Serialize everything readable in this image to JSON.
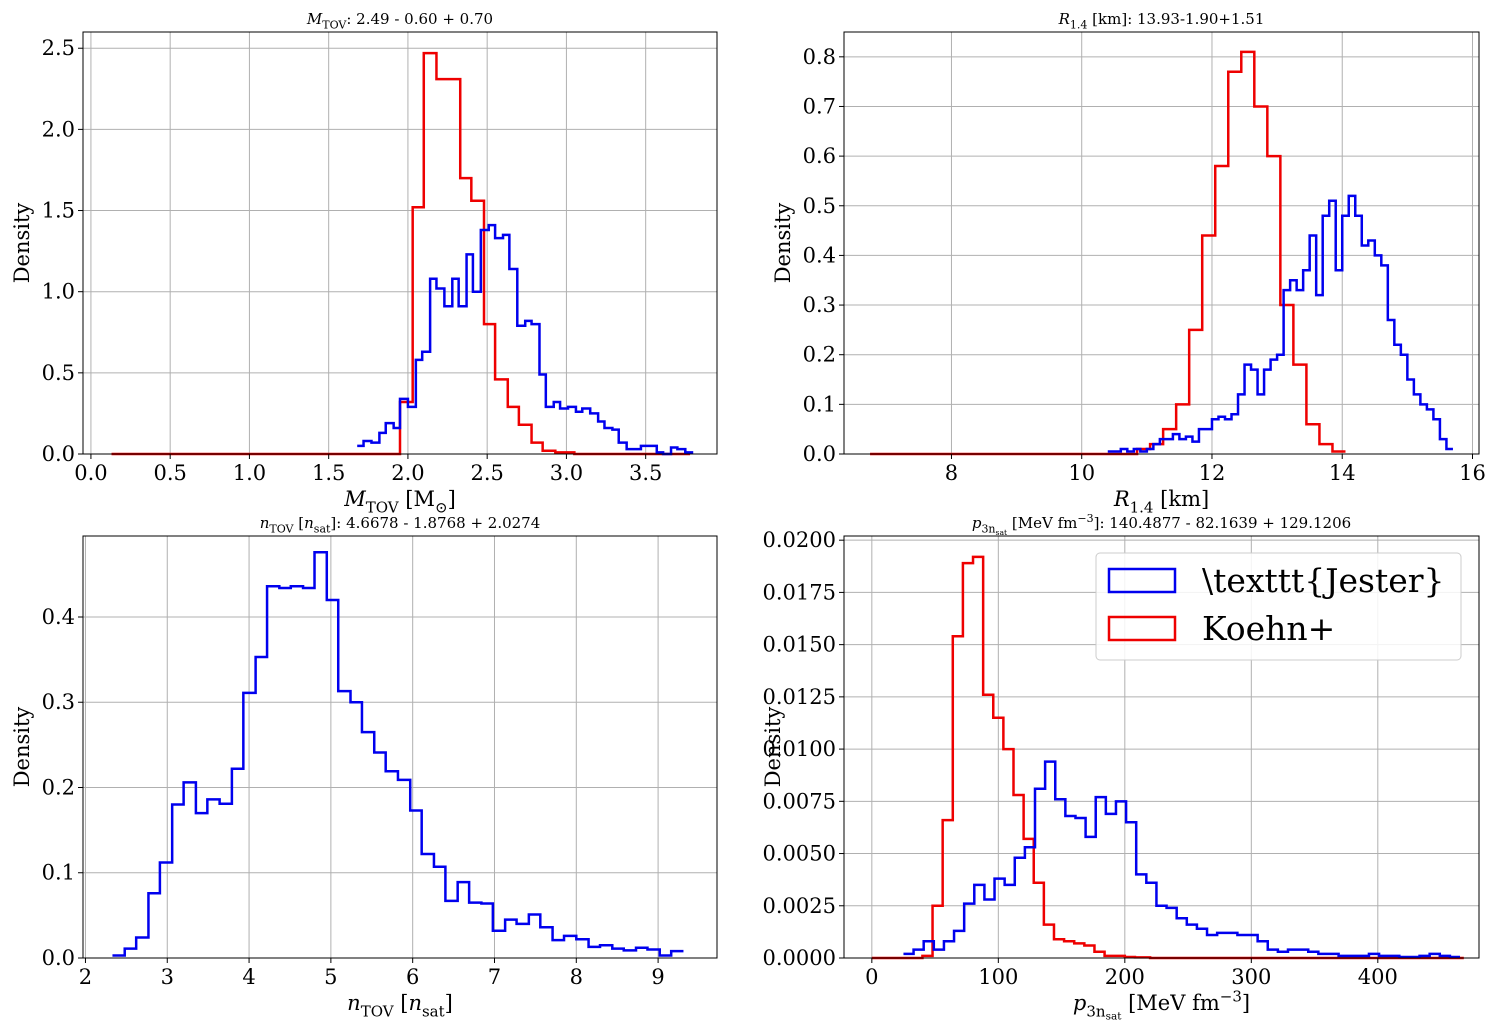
{
  "colors": {
    "jester": "#0000ee",
    "koehn": "#ee0000",
    "grid": "#b0b0b0",
    "axis": "#000000"
  },
  "legend": {
    "jester_label": "\\texttt{Jester}",
    "koehn_label": "Koehn+"
  },
  "chart_data": [
    {
      "type": "histogram",
      "title": {
        "main": "M",
        "sub": "TOV",
        "rest": ": 2.49 - 0.60 + 0.70"
      },
      "xlabel": {
        "main": "M",
        "sub": "TOV",
        "rest": " [M",
        "rest_sub": "⊙",
        "tail": "]"
      },
      "ylabel": "Density",
      "xlim": [
        -0.05,
        3.95
      ],
      "ylim": [
        0,
        2.6
      ],
      "xticks": [
        0.0,
        0.5,
        1.0,
        1.5,
        2.0,
        2.5,
        3.0,
        3.5
      ],
      "xtick_labels": [
        "0.0",
        "0.5",
        "1.0",
        "1.5",
        "2.0",
        "2.5",
        "3.0",
        "3.5"
      ],
      "yticks": [
        0.0,
        0.5,
        1.0,
        1.5,
        2.0,
        2.5
      ],
      "ytick_labels": [
        "0.0",
        "0.5",
        "1.0",
        "1.5",
        "2.0",
        "2.5"
      ],
      "grid": true,
      "series": [
        {
          "key": "koehn",
          "edges": [
            0.13,
            1.95,
            2.03,
            2.1,
            2.18,
            2.25,
            2.33,
            2.4,
            2.48,
            2.55,
            2.63,
            2.7,
            2.78,
            2.85,
            2.93,
            3.05,
            3.78
          ],
          "values": [
            0,
            0.32,
            1.52,
            2.47,
            2.31,
            2.31,
            1.7,
            1.56,
            0.8,
            0.46,
            0.29,
            0.18,
            0.07,
            0.02,
            0.01,
            0
          ]
        },
        {
          "key": "jester",
          "edges": [
            1.68,
            1.72,
            1.77,
            1.82,
            1.86,
            1.91,
            1.95,
            2.0,
            2.05,
            2.09,
            2.14,
            2.18,
            2.23,
            2.28,
            2.32,
            2.37,
            2.41,
            2.46,
            2.51,
            2.55,
            2.6,
            2.64,
            2.69,
            2.74,
            2.78,
            2.83,
            2.87,
            2.92,
            2.96,
            3.01,
            3.06,
            3.1,
            3.15,
            3.2,
            3.24,
            3.29,
            3.33,
            3.38,
            3.43,
            3.47,
            3.52,
            3.57,
            3.61,
            3.66,
            3.7,
            3.75,
            3.8
          ],
          "values": [
            0.05,
            0.08,
            0.07,
            0.13,
            0.19,
            0.16,
            0.34,
            0.29,
            0.58,
            0.63,
            1.08,
            1.02,
            0.91,
            1.08,
            0.91,
            1.23,
            1.0,
            1.38,
            1.41,
            1.33,
            1.35,
            1.14,
            0.79,
            0.82,
            0.8,
            0.49,
            0.29,
            0.32,
            0.28,
            0.29,
            0.26,
            0.28,
            0.25,
            0.2,
            0.16,
            0.15,
            0.07,
            0.03,
            0.03,
            0.05,
            0.05,
            0.01,
            0.0,
            0.04,
            0.03,
            0.01
          ]
        }
      ]
    },
    {
      "type": "histogram",
      "title": {
        "main": "R",
        "sub": "1.4",
        "rest": " [km]: 13.93-1.90+1.51"
      },
      "xlabel": {
        "main": "R",
        "sub": "1.4",
        "rest": " [km]"
      },
      "ylabel": "Density",
      "xlim": [
        6.35,
        16.1
      ],
      "ylim": [
        0,
        0.85
      ],
      "xticks": [
        8,
        10,
        12,
        14,
        16
      ],
      "xtick_labels": [
        "8",
        "10",
        "12",
        "14",
        "16"
      ],
      "yticks": [
        0.0,
        0.1,
        0.2,
        0.3,
        0.4,
        0.5,
        0.6,
        0.7,
        0.8
      ],
      "ytick_labels": [
        "0.0",
        "0.1",
        "0.2",
        "0.3",
        "0.4",
        "0.5",
        "0.6",
        "0.7",
        "0.8"
      ],
      "grid": true,
      "series": [
        {
          "key": "koehn",
          "edges": [
            6.75,
            10.85,
            11.05,
            11.25,
            11.45,
            11.65,
            11.85,
            12.05,
            12.25,
            12.45,
            12.65,
            12.85,
            13.05,
            13.25,
            13.45,
            13.65,
            13.85,
            14.05
          ],
          "values": [
            0,
            0.01,
            0.02,
            0.05,
            0.1,
            0.25,
            0.44,
            0.58,
            0.77,
            0.81,
            0.7,
            0.6,
            0.3,
            0.18,
            0.06,
            0.02,
            0.005
          ]
        },
        {
          "key": "jester",
          "edges": [
            10.4,
            10.5,
            10.6,
            10.7,
            10.8,
            10.9,
            11.0,
            11.1,
            11.2,
            11.3,
            11.4,
            11.5,
            11.6,
            11.7,
            11.8,
            11.9,
            12.0,
            12.1,
            12.2,
            12.3,
            12.4,
            12.5,
            12.6,
            12.7,
            12.8,
            12.9,
            13.0,
            13.1,
            13.2,
            13.3,
            13.4,
            13.5,
            13.6,
            13.7,
            13.8,
            13.9,
            14.0,
            14.1,
            14.2,
            14.3,
            14.4,
            14.5,
            14.6,
            14.7,
            14.8,
            14.9,
            15.0,
            15.1,
            15.2,
            15.3,
            15.4,
            15.5,
            15.6,
            15.7
          ],
          "values": [
            0.005,
            0.005,
            0.01,
            0.005,
            0.01,
            0.005,
            0.01,
            0.02,
            0.03,
            0.03,
            0.04,
            0.03,
            0.035,
            0.025,
            0.05,
            0.05,
            0.07,
            0.075,
            0.07,
            0.08,
            0.12,
            0.18,
            0.17,
            0.12,
            0.17,
            0.19,
            0.2,
            0.33,
            0.35,
            0.33,
            0.37,
            0.44,
            0.32,
            0.48,
            0.51,
            0.37,
            0.48,
            0.52,
            0.48,
            0.42,
            0.43,
            0.4,
            0.38,
            0.27,
            0.22,
            0.2,
            0.15,
            0.12,
            0.1,
            0.09,
            0.07,
            0.03,
            0.01
          ]
        }
      ]
    },
    {
      "type": "histogram",
      "title": {
        "main": "n",
        "sub": "TOV",
        "rest": " [",
        "rest_main": "n",
        "rest_sub": "sat",
        "tail": "]: 4.6678 - 1.8768 + 2.0274"
      },
      "xlabel": {
        "main": "n",
        "sub": "TOV",
        "rest": " [",
        "rest_main": "n",
        "rest_sub": "sat",
        "tail": "]"
      },
      "ylabel": "Density",
      "xlim": [
        1.97,
        9.72
      ],
      "ylim": [
        0,
        0.495
      ],
      "xticks": [
        2,
        3,
        4,
        5,
        6,
        7,
        8,
        9
      ],
      "xtick_labels": [
        "2",
        "3",
        "4",
        "5",
        "6",
        "7",
        "8",
        "9"
      ],
      "yticks": [
        0.0,
        0.1,
        0.2,
        0.3,
        0.4
      ],
      "ytick_labels": [
        "0.0",
        "0.1",
        "0.2",
        "0.3",
        "0.4"
      ],
      "grid": true,
      "series": [
        {
          "key": "jester",
          "edges": [
            2.33,
            2.48,
            2.62,
            2.77,
            2.91,
            3.06,
            3.2,
            3.35,
            3.49,
            3.64,
            3.79,
            3.93,
            4.08,
            4.22,
            4.37,
            4.51,
            4.66,
            4.8,
            4.95,
            5.09,
            5.24,
            5.38,
            5.53,
            5.67,
            5.82,
            5.97,
            6.11,
            6.26,
            6.4,
            6.55,
            6.69,
            6.84,
            6.98,
            7.13,
            7.27,
            7.42,
            7.56,
            7.71,
            7.85,
            8.0,
            8.15,
            8.29,
            8.44,
            8.58,
            8.73,
            8.87,
            9.02,
            9.16,
            9.31
          ],
          "values": [
            0.003,
            0.011,
            0.024,
            0.076,
            0.112,
            0.18,
            0.206,
            0.17,
            0.186,
            0.181,
            0.222,
            0.311,
            0.353,
            0.436,
            0.434,
            0.436,
            0.434,
            0.476,
            0.42,
            0.313,
            0.3,
            0.265,
            0.241,
            0.219,
            0.209,
            0.173,
            0.122,
            0.107,
            0.067,
            0.089,
            0.065,
            0.064,
            0.032,
            0.045,
            0.04,
            0.051,
            0.036,
            0.021,
            0.026,
            0.022,
            0.013,
            0.015,
            0.011,
            0.009,
            0.012,
            0.01,
            0.003,
            0.008
          ]
        }
      ]
    },
    {
      "type": "histogram",
      "title": {
        "main": "p",
        "sub": "3n",
        "subsub": "sat",
        "rest": " [MeV fm",
        "sup": "−3",
        "tail": "]: 140.4877 - 82.1639 + 129.1206"
      },
      "xlabel": {
        "main": "p",
        "sub": "3n",
        "subsub": "sat",
        "rest": " [MeV fm",
        "sup": "−3",
        "tail": "]"
      },
      "ylabel": "Density",
      "xlim": [
        -22,
        480
      ],
      "ylim": [
        0,
        0.0202
      ],
      "xticks": [
        0,
        100,
        200,
        300,
        400
      ],
      "xtick_labels": [
        "0",
        "100",
        "200",
        "300",
        "400"
      ],
      "yticks": [
        0.0,
        0.0025,
        0.005,
        0.0075,
        0.01,
        0.0125,
        0.015,
        0.0175,
        0.02
      ],
      "ytick_labels": [
        "0.0000",
        "0.0025",
        "0.0050",
        "0.0075",
        "0.0100",
        "0.0125",
        "0.0150",
        "0.0175",
        "0.0200"
      ],
      "grid": true,
      "legend_position": "upper right",
      "series": [
        {
          "key": "koehn",
          "edges": [
            0,
            40,
            48,
            56,
            64,
            72,
            80,
            88,
            96,
            104,
            112,
            120,
            128,
            136,
            144,
            152,
            160,
            168,
            176,
            184,
            192,
            200,
            208,
            220,
            468
          ],
          "values": [
            0,
            0.0001,
            0.0025,
            0.0066,
            0.0154,
            0.0189,
            0.0192,
            0.0126,
            0.0115,
            0.01,
            0.0078,
            0.0057,
            0.0036,
            0.0016,
            0.0009,
            0.0008,
            0.0007,
            0.0006,
            0.0003,
            0.0001,
            0.0001,
            5e-05,
            3e-05,
            0
          ]
        },
        {
          "key": "jester",
          "edges": [
            25,
            33,
            41,
            49,
            57,
            65,
            73,
            81,
            89,
            97,
            105,
            113,
            121,
            129,
            137,
            145,
            153,
            161,
            169,
            177,
            185,
            193,
            201,
            209,
            217,
            225,
            233,
            241,
            249,
            257,
            265,
            273,
            281,
            289,
            297,
            305,
            313,
            321,
            329,
            337,
            345,
            353,
            361,
            369,
            377,
            385,
            393,
            401,
            409,
            417,
            425,
            433,
            441,
            449,
            457,
            465
          ],
          "values": [
            0.0002,
            0.0004,
            0.0008,
            0.0004,
            0.0008,
            0.0013,
            0.0026,
            0.0035,
            0.0028,
            0.0038,
            0.0035,
            0.0048,
            0.0053,
            0.0081,
            0.0094,
            0.0076,
            0.0068,
            0.0067,
            0.0058,
            0.0077,
            0.0069,
            0.0075,
            0.0065,
            0.004,
            0.0036,
            0.0025,
            0.0024,
            0.0019,
            0.0016,
            0.0014,
            0.0011,
            0.0012,
            0.0012,
            0.0011,
            0.0011,
            0.0008,
            0.0004,
            0.0003,
            0.0004,
            0.0004,
            0.0003,
            0.0002,
            0.0002,
            0.0001,
            0.0001,
            0.0001,
            0.0002,
            0.0001,
            0.0001,
            5e-05,
            5e-05,
            0.0001,
            0.0002,
            0.0001,
            5e-05
          ]
        }
      ]
    }
  ]
}
